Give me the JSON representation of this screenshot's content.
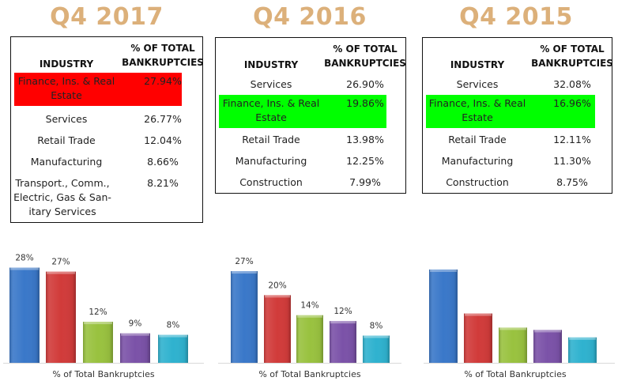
{
  "panels": [
    {
      "title": "Q4 2017",
      "table": {
        "headers": {
          "industry": "INDUSTRY",
          "pct_line1": "% OF TOTAL",
          "pct_line2": "BANKRUPTCIES"
        },
        "rows": [
          {
            "industry": "Finance, Ins. & Real Estate",
            "pct": "27.94%",
            "highlight": "#ff0000"
          },
          {
            "industry": "Services",
            "pct": "26.77%"
          },
          {
            "industry": "Retail Trade",
            "pct": "12.04%"
          },
          {
            "industry": "Manufacturing",
            "pct": "8.66%"
          },
          {
            "industry": "Transport., Comm., Electric, Gas & San-itary Services",
            "pct": "8.21%"
          }
        ]
      }
    },
    {
      "title": "Q4 2016",
      "table": {
        "headers": {
          "industry": "INDUSTRY",
          "pct_line1": "% OF TOTAL",
          "pct_line2": "BANKRUPTCIES"
        },
        "rows": [
          {
            "industry": "Services",
            "pct": "26.90%"
          },
          {
            "industry": "Finance, Ins. & Real Estate",
            "pct": "19.86%",
            "highlight": "#00ff00"
          },
          {
            "industry": "Retail Trade",
            "pct": "13.98%"
          },
          {
            "industry": "Manufacturing",
            "pct": "12.25%"
          },
          {
            "industry": "Construction",
            "pct": "7.99%"
          }
        ]
      }
    },
    {
      "title": "Q4 2015",
      "table": {
        "headers": {
          "industry": "INDUSTRY",
          "pct_line1": "% OF TOTAL",
          "pct_line2": "BANKRUPTCIES"
        },
        "rows": [
          {
            "industry": "Services",
            "pct": "32.08%"
          },
          {
            "industry": "Finance, Ins. & Real Estate",
            "pct": "16.96%",
            "highlight": "#00ff00"
          },
          {
            "industry": "Retail Trade",
            "pct": "12.11%"
          },
          {
            "industry": "Manufacturing",
            "pct": "11.30%"
          },
          {
            "industry": "Construction",
            "pct": "8.75%"
          }
        ]
      }
    }
  ],
  "bar_colors": [
    "#3a78c9",
    "#d13b3a",
    "#99c23f",
    "#7b52a8",
    "#2fb2cf"
  ],
  "chart_data": [
    {
      "type": "bar",
      "title": "",
      "xlabel": "% of Total Bankruptcies",
      "ylabel": "",
      "categories": [
        "Finance, Ins. & Real Estate",
        "Services",
        "Retail Trade",
        "Manufacturing",
        "Transport., Comm., Electric, Gas & Sanitary Services"
      ],
      "values": [
        27.94,
        26.77,
        12.04,
        8.66,
        8.21
      ],
      "data_labels": [
        "28%",
        "27%",
        "12%",
        "9%",
        "8%"
      ],
      "ylim": [
        0,
        30
      ],
      "grid": false,
      "legend": "none"
    },
    {
      "type": "bar",
      "title": "",
      "xlabel": "% of Total Bankruptcies",
      "ylabel": "",
      "categories": [
        "Services",
        "Finance, Ins. & Real Estate",
        "Retail Trade",
        "Manufacturing",
        "Construction"
      ],
      "values": [
        26.9,
        19.86,
        13.98,
        12.25,
        7.99
      ],
      "data_labels": [
        "27%",
        "20%",
        "14%",
        "12%",
        "8%"
      ],
      "ylim": [
        0,
        30
      ],
      "grid": false,
      "legend": "none"
    },
    {
      "type": "bar",
      "title": "",
      "xlabel": "% of Total Bankruptcies",
      "ylabel": "",
      "categories": [
        "Services",
        "Finance, Ins. & Real Estate",
        "Retail Trade",
        "Manufacturing",
        "Construction"
      ],
      "values": [
        32.08,
        16.96,
        12.11,
        11.3,
        8.75
      ],
      "data_labels": [],
      "ylim": [
        0,
        35
      ],
      "grid": false,
      "legend": "none"
    }
  ]
}
